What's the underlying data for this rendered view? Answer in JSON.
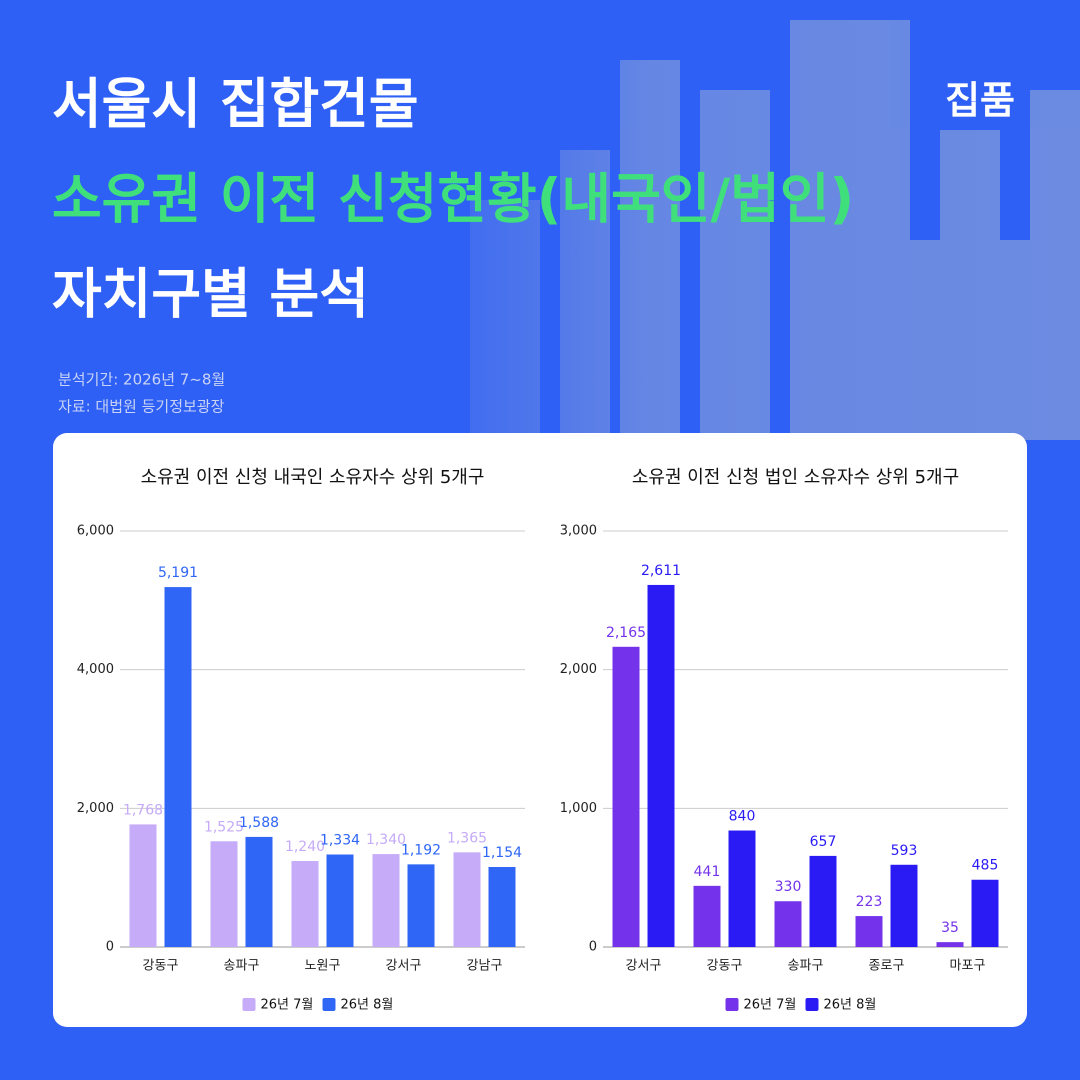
{
  "header": {
    "title_lines": [
      "서울시 집합건물",
      "소유권 이전 신청현황(내국인/법인)",
      "자치구별 분석"
    ],
    "brand": "집품",
    "period": "분석기간: 2026년 7~8월",
    "source": "자료: 대법원 등기정보광장"
  },
  "chart_data": [
    {
      "type": "bar",
      "title": "소유권 이전 신청 내국인 소유자수 상위 5개구",
      "categories": [
        "강동구",
        "송파구",
        "노원구",
        "강서구",
        "강남구"
      ],
      "series": [
        {
          "name": "26년 7월",
          "color": "#c5abf8",
          "values": [
            1768,
            1525,
            1240,
            1340,
            1365
          ],
          "value_labels": [
            "1,768",
            "1,525",
            "1,240",
            "1,340",
            "1,365"
          ]
        },
        {
          "name": "26년 8월",
          "color": "#2f66f5",
          "values": [
            5191,
            1588,
            1334,
            1192,
            1154
          ],
          "value_labels": [
            "5,191",
            "1,588",
            "1,334",
            "1,192",
            "1,154"
          ]
        }
      ],
      "ylim": [
        0,
        6000
      ],
      "yticks": [
        0,
        {
          "value": 2000,
          "label": "2,000"
        },
        {
          "value": 4000,
          "label": "4,000"
        },
        {
          "value": 6000,
          "label": "6,000"
        }
      ],
      "grid": true,
      "legend": "bottom"
    },
    {
      "type": "bar",
      "title": "소유권 이전 신청 법인 소유자수 상위 5개구",
      "categories": [
        "강서구",
        "강동구",
        "송파구",
        "종로구",
        "마포구"
      ],
      "series": [
        {
          "name": "26년 7월",
          "color": "#7433ea",
          "values": [
            2165,
            441,
            330,
            223,
            35
          ],
          "value_labels": [
            "2,165",
            "441",
            "330",
            "223",
            "35"
          ]
        },
        {
          "name": "26년 8월",
          "color": "#2a1bf5",
          "values": [
            2611,
            840,
            657,
            593,
            485
          ],
          "value_labels": [
            "2,611",
            "840",
            "657",
            "593",
            "485"
          ]
        }
      ],
      "ylim": [
        0,
        3000
      ],
      "yticks": [
        0,
        {
          "value": 1000,
          "label": "1,000"
        },
        {
          "value": 2000,
          "label": "2,000"
        },
        {
          "value": 3000,
          "label": "3,000"
        }
      ],
      "grid": true,
      "legend": "bottom"
    }
  ]
}
